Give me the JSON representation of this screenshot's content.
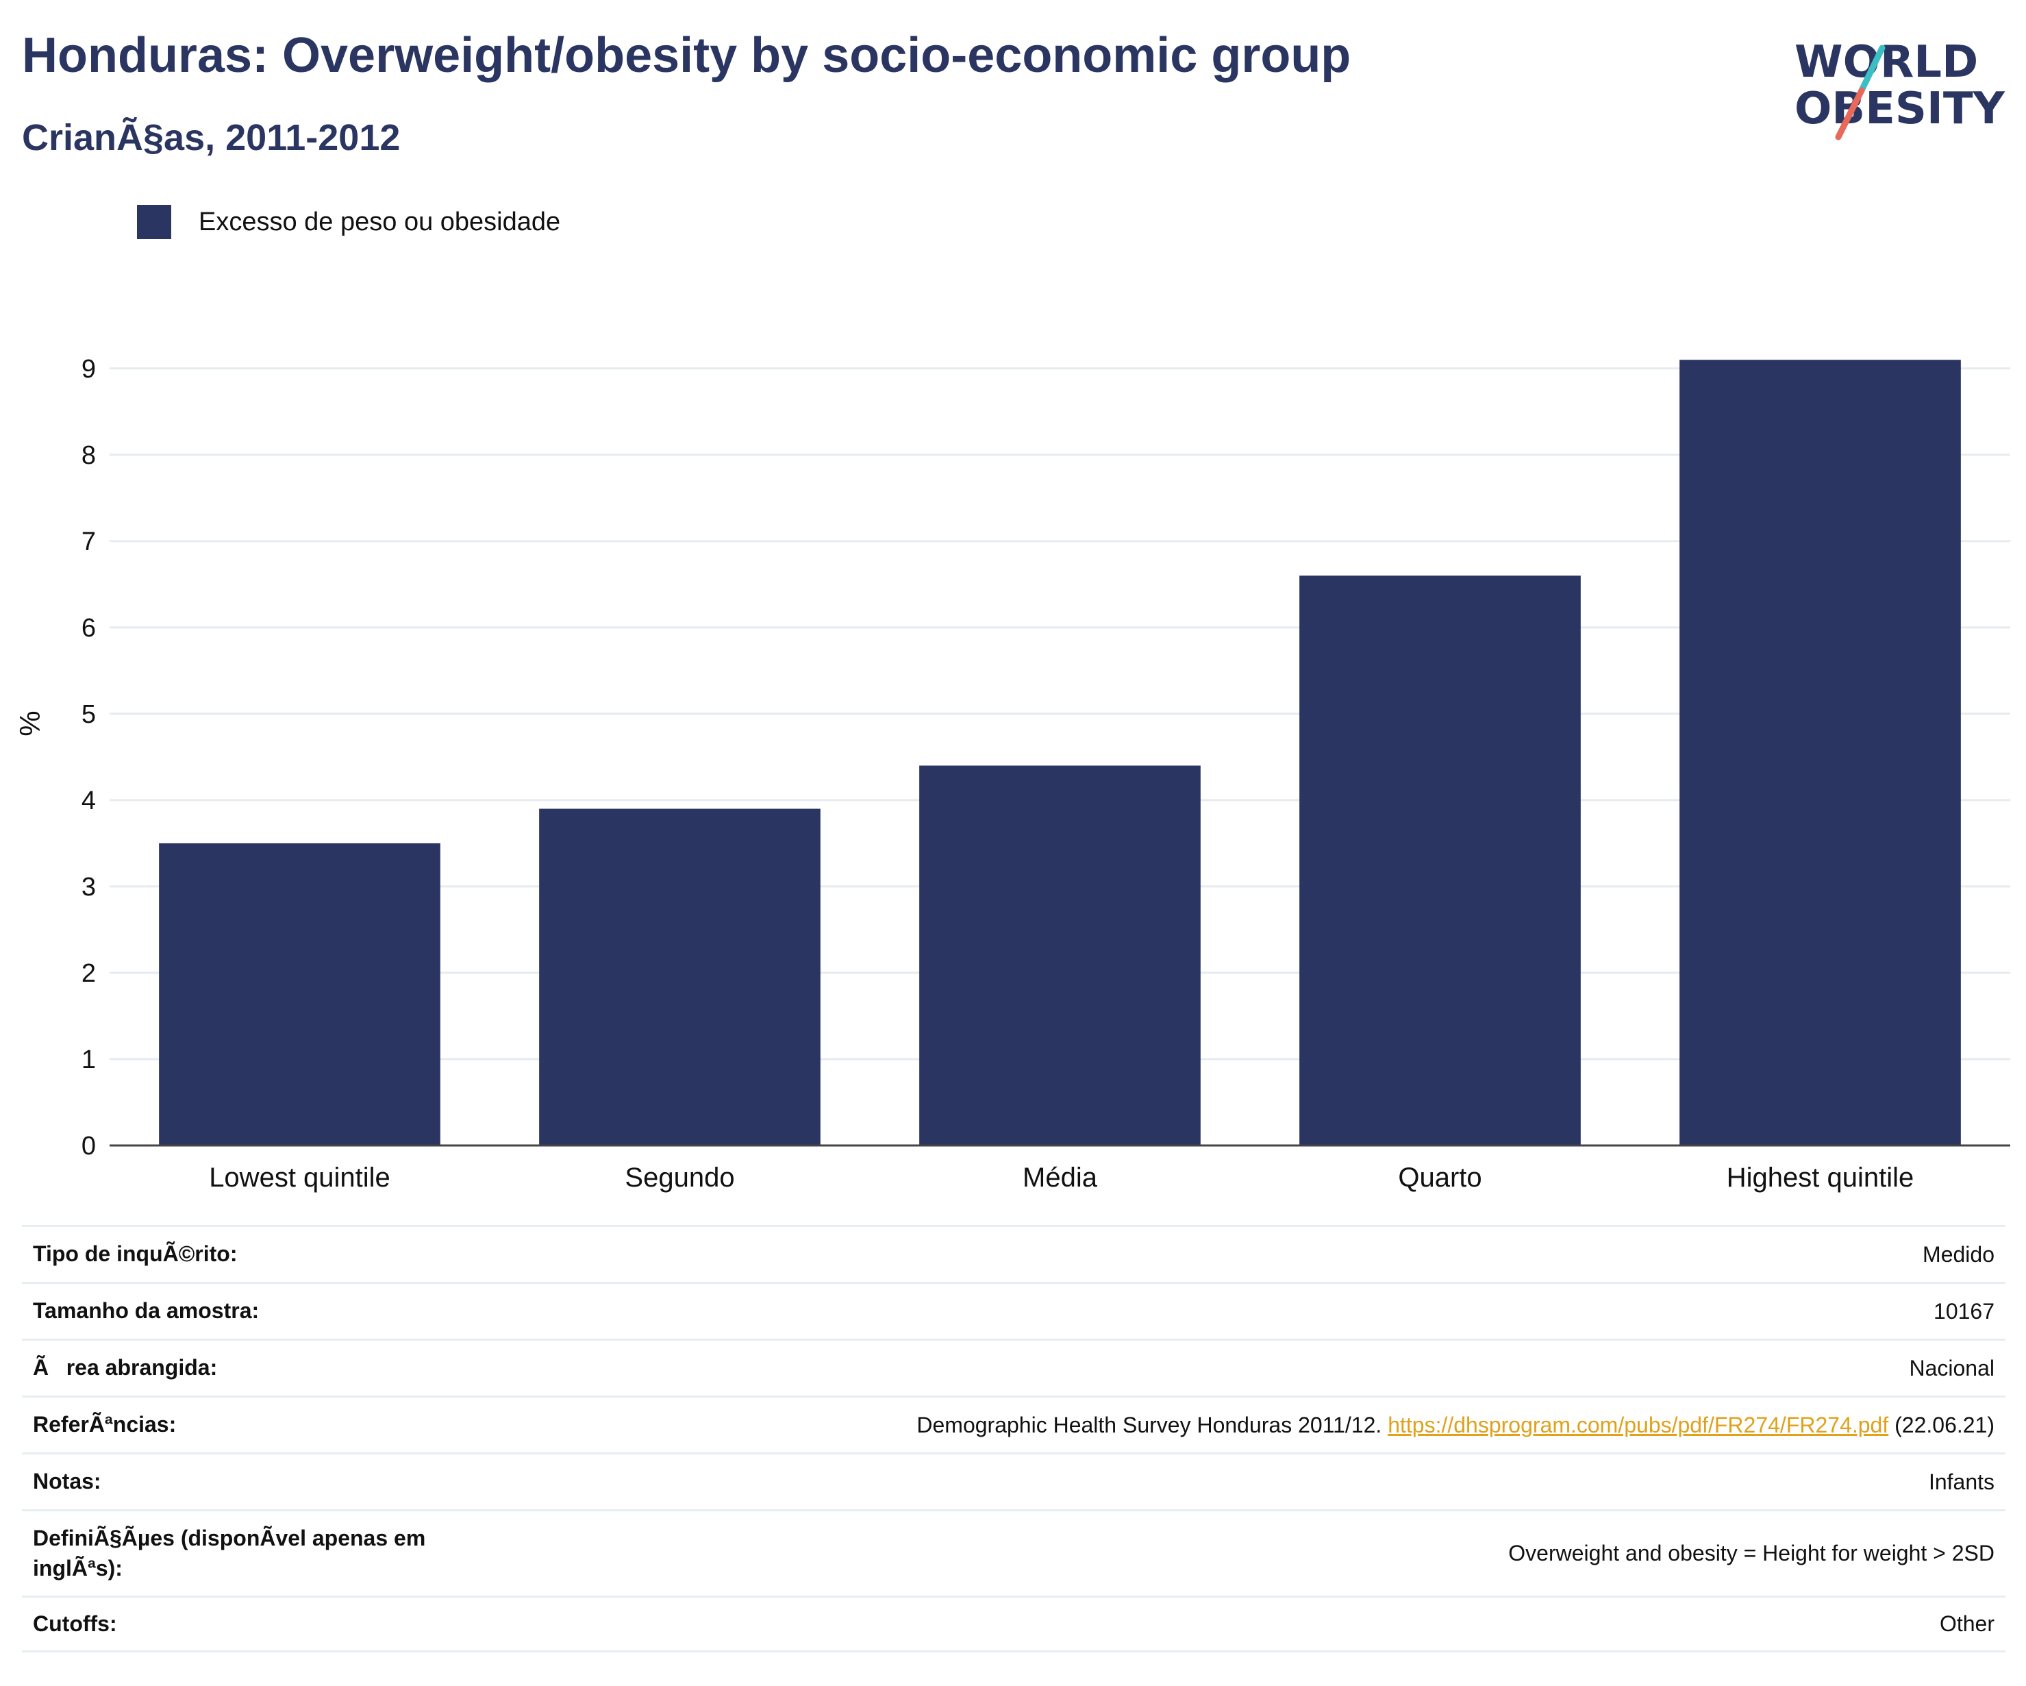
{
  "header": {
    "title": "Honduras: Overweight/obesity by socio-economic group",
    "subtitle": "CrianÃ§as, 2011-2012"
  },
  "logo": {
    "line1": "WORLD",
    "line2": "OBESITY",
    "colors": {
      "text": "#2a3561",
      "slash_teal": "#3bbfc4",
      "slash_coral": "#e8685a"
    }
  },
  "chart_data": {
    "type": "bar",
    "categories": [
      "Lowest quintile",
      "Segundo",
      "Média",
      "Quarto",
      "Highest quintile"
    ],
    "series": [
      {
        "name": "Excesso de peso ou obesidade",
        "values": [
          3.5,
          3.9,
          4.4,
          6.6,
          9.1
        ],
        "color": "#2a3561"
      }
    ],
    "title": "Honduras: Overweight/obesity by socio-economic group",
    "subtitle": "CrianÃ§as, 2011-2012",
    "xlabel": "",
    "ylabel": "%",
    "ylim": [
      0,
      9.3
    ],
    "yticks": [
      0,
      1,
      2,
      3,
      4,
      5,
      6,
      7,
      8,
      9
    ],
    "grid": true,
    "legend_position": "top-left"
  },
  "meta": {
    "rows": [
      {
        "key": "Tipo de inquÃ©rito:",
        "value": "Medido"
      },
      {
        "key": "Tamanho da amostra:",
        "value": "10167"
      },
      {
        "key": "Ãrea abrangida:",
        "value": "Nacional"
      },
      {
        "key": "ReferÃªncias:",
        "value": "Demographic Health Survey Honduras 2011/12.",
        "link": "https://dhsprogram.com/pubs/pdf/FR274/FR274.pdf",
        "suffix": "(22.06.21)"
      },
      {
        "key": "Notas:",
        "value": "Infants"
      },
      {
        "key": "DefiniÃ§Ãµes (disponÃvel apenas em inglÃªs):",
        "value": "Overweight and obesity = Height for weight > 2SD"
      },
      {
        "key": "Cutoffs:",
        "value": "Other"
      }
    ]
  }
}
